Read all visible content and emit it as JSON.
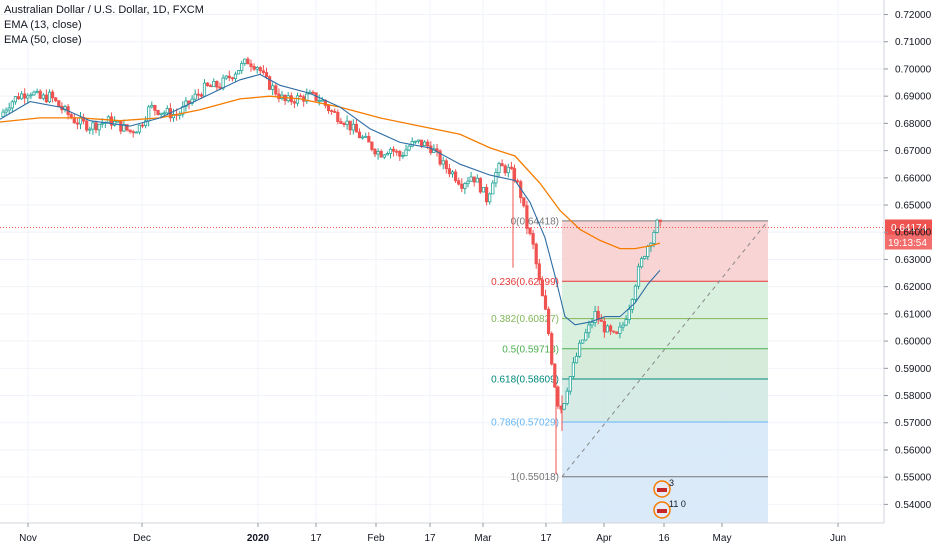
{
  "legend": {
    "symbol": "Australian Dollar / U.S. Dollar, 1D, FXCM",
    "ema13": "EMA (13, close)",
    "ema50": "EMA (50, close)"
  },
  "colors": {
    "up": "#26a69a",
    "down": "#ef5350",
    "ema13": "#2e6da4",
    "ema50": "#f57c00",
    "price_line": "#ef5350"
  },
  "price_axis": {
    "ticks": [
      "0.72000",
      "0.71000",
      "0.70000",
      "0.69000",
      "0.68000",
      "0.67000",
      "0.66000",
      "0.65000",
      "0.64000",
      "0.63000",
      "0.62000",
      "0.61000",
      "0.60000",
      "0.59000",
      "0.58000",
      "0.57000",
      "0.56000",
      "0.55000",
      "0.54000"
    ],
    "last_price": "0.64174",
    "countdown": "19:13:54"
  },
  "time_axis": {
    "labels": [
      "Nov",
      "Dec",
      "2020",
      "17",
      "Feb",
      "17",
      "Mar",
      "17",
      "Apr",
      "16",
      "May",
      "Jun"
    ]
  },
  "fib_levels": [
    {
      "label": "0(0.64418)",
      "value": 0.64418,
      "color": "#777777"
    },
    {
      "label": "0.236(0.62199)",
      "value": 0.62199,
      "color": "#e53935"
    },
    {
      "label": "0.382(0.60827)",
      "value": 0.60827,
      "color": "#81b65a"
    },
    {
      "label": "0.5(0.59718)",
      "value": 0.59718,
      "color": "#4caf50"
    },
    {
      "label": "0.618(0.58609)",
      "value": 0.58609,
      "color": "#00897b"
    },
    {
      "label": "0.786(0.57029)",
      "value": 0.57029,
      "color": "#64b5f6"
    },
    {
      "label": "1(0.55018)",
      "value": 0.55018,
      "color": "#777777"
    }
  ],
  "events": [
    {
      "badge": "3"
    },
    {
      "badge": "11 0"
    }
  ],
  "chart_data": {
    "type": "candlestick",
    "title": "Australian Dollar / U.S. Dollar, 1D, FXCM",
    "ylim": [
      0.535,
      0.7235
    ],
    "series_names": [
      "EMA (13, close)",
      "EMA (50, close)"
    ],
    "close_path": [
      [
        0,
        0.6825
      ],
      [
        8,
        0.687
      ],
      [
        18,
        0.69
      ],
      [
        30,
        0.692
      ],
      [
        40,
        0.689
      ],
      [
        50,
        0.69
      ],
      [
        60,
        0.686
      ],
      [
        75,
        0.681
      ],
      [
        90,
        0.679
      ],
      [
        110,
        0.681
      ],
      [
        130,
        0.677
      ],
      [
        140,
        0.679
      ],
      [
        150,
        0.686
      ],
      [
        165,
        0.684
      ],
      [
        178,
        0.683
      ],
      [
        190,
        0.688
      ],
      [
        205,
        0.693
      ],
      [
        220,
        0.694
      ],
      [
        235,
        0.699
      ],
      [
        248,
        0.703
      ],
      [
        258,
        0.701
      ],
      [
        265,
        0.696
      ],
      [
        275,
        0.692
      ],
      [
        285,
        0.688
      ],
      [
        295,
        0.689
      ],
      [
        310,
        0.69
      ],
      [
        320,
        0.689
      ],
      [
        332,
        0.684
      ],
      [
        345,
        0.681
      ],
      [
        355,
        0.677
      ],
      [
        370,
        0.672
      ],
      [
        380,
        0.669
      ],
      [
        390,
        0.671
      ],
      [
        400,
        0.668
      ],
      [
        410,
        0.672
      ],
      [
        420,
        0.673
      ],
      [
        432,
        0.671
      ],
      [
        442,
        0.665
      ],
      [
        452,
        0.662
      ],
      [
        462,
        0.658
      ],
      [
        472,
        0.661
      ],
      [
        480,
        0.657
      ],
      [
        487,
        0.652
      ],
      [
        493,
        0.66
      ],
      [
        500,
        0.664
      ],
      [
        508,
        0.663
      ],
      [
        515,
        0.66
      ],
      [
        520,
        0.655
      ],
      [
        527,
        0.642
      ],
      [
        533,
        0.635
      ],
      [
        540,
        0.62
      ],
      [
        547,
        0.608
      ],
      [
        552,
        0.592
      ],
      [
        557,
        0.578
      ],
      [
        562,
        0.575
      ],
      [
        567,
        0.583
      ],
      [
        572,
        0.589
      ],
      [
        577,
        0.595
      ],
      [
        582,
        0.6
      ],
      [
        588,
        0.604
      ],
      [
        595,
        0.61
      ],
      [
        602,
        0.606
      ],
      [
        609,
        0.603
      ],
      [
        616,
        0.601
      ],
      [
        623,
        0.606
      ],
      [
        630,
        0.614
      ],
      [
        637,
        0.624
      ],
      [
        644,
        0.632
      ],
      [
        651,
        0.638
      ],
      [
        657,
        0.643
      ],
      [
        661,
        0.6417
      ]
    ],
    "ema13": [
      [
        0,
        0.6815
      ],
      [
        30,
        0.688
      ],
      [
        60,
        0.686
      ],
      [
        90,
        0.681
      ],
      [
        130,
        0.679
      ],
      [
        160,
        0.682
      ],
      [
        200,
        0.689
      ],
      [
        240,
        0.696
      ],
      [
        260,
        0.698
      ],
      [
        280,
        0.694
      ],
      [
        310,
        0.691
      ],
      [
        340,
        0.686
      ],
      [
        370,
        0.678
      ],
      [
        400,
        0.673
      ],
      [
        430,
        0.671
      ],
      [
        460,
        0.665
      ],
      [
        490,
        0.661
      ],
      [
        515,
        0.659
      ],
      [
        530,
        0.651
      ],
      [
        545,
        0.638
      ],
      [
        555,
        0.624
      ],
      [
        565,
        0.609
      ],
      [
        575,
        0.606
      ],
      [
        590,
        0.607
      ],
      [
        605,
        0.609
      ],
      [
        620,
        0.609
      ],
      [
        635,
        0.614
      ],
      [
        648,
        0.621
      ],
      [
        660,
        0.626
      ]
    ],
    "ema50": [
      [
        0,
        0.6805
      ],
      [
        40,
        0.682
      ],
      [
        80,
        0.682
      ],
      [
        120,
        0.681
      ],
      [
        160,
        0.682
      ],
      [
        200,
        0.685
      ],
      [
        240,
        0.689
      ],
      [
        270,
        0.69
      ],
      [
        300,
        0.689
      ],
      [
        340,
        0.686
      ],
      [
        380,
        0.682
      ],
      [
        420,
        0.679
      ],
      [
        460,
        0.676
      ],
      [
        490,
        0.671
      ],
      [
        515,
        0.668
      ],
      [
        540,
        0.658
      ],
      [
        560,
        0.648
      ],
      [
        580,
        0.641
      ],
      [
        600,
        0.637
      ],
      [
        620,
        0.634
      ],
      [
        635,
        0.634
      ],
      [
        650,
        0.635
      ],
      [
        660,
        0.636
      ]
    ]
  }
}
